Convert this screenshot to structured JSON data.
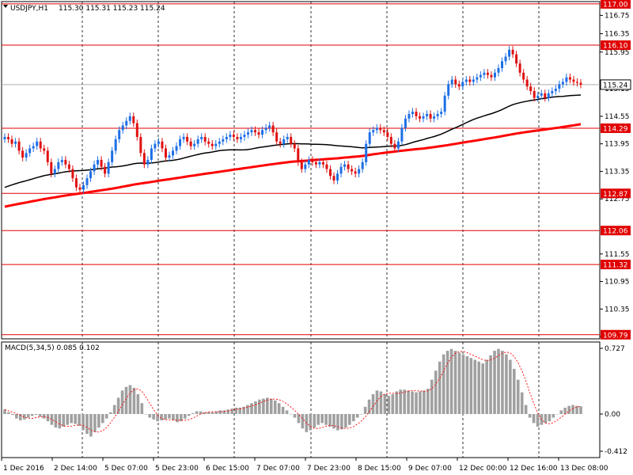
{
  "header": {
    "symbol": "USDJPY,H1",
    "ohlc": "115.30 115.31 115.23 115.24"
  },
  "chart_data": [
    {
      "type": "candlestick",
      "symbol": "USDJPY,H1",
      "ylim": [
        109.7,
        117.05
      ],
      "y_ticks": [
        116.75,
        116.35,
        115.95,
        115.15,
        114.55,
        113.95,
        113.35,
        112.75,
        111.55,
        110.95,
        110.35,
        109.75
      ],
      "horizontal_levels": [
        {
          "value": 117.0,
          "label": "117.00"
        },
        {
          "value": 116.1,
          "label": "116.10"
        },
        {
          "value": 114.29,
          "label": "114.29"
        },
        {
          "value": 112.87,
          "label": "112.87"
        },
        {
          "value": 112.06,
          "label": "112.06"
        },
        {
          "value": 111.32,
          "label": "111.32"
        },
        {
          "value": 109.79,
          "label": "109.79"
        }
      ],
      "current_price": {
        "value": 115.24,
        "label": "115.24"
      },
      "x_labels": [
        "1 Dec 2016",
        "2 Dec 14:00",
        "5 Dec 07:00",
        "5 Dec 23:00",
        "6 Dec 15:00",
        "7 Dec 07:00",
        "7 Dec 23:00",
        "8 Dec 15:00",
        "9 Dec 07:00",
        "12 Dec 00:00",
        "12 Dec 16:00",
        "13 Dec 08:00"
      ],
      "closes": [
        114.1,
        114.05,
        113.95,
        114.0,
        113.8,
        113.65,
        113.75,
        113.85,
        113.9,
        114.0,
        113.85,
        113.8,
        113.55,
        113.3,
        113.4,
        113.55,
        113.6,
        113.5,
        113.4,
        113.2,
        113.0,
        112.95,
        113.05,
        113.2,
        113.35,
        113.5,
        113.6,
        113.45,
        113.3,
        113.55,
        113.8,
        114.05,
        114.25,
        114.35,
        114.45,
        114.55,
        114.4,
        114.1,
        113.75,
        113.5,
        113.6,
        113.85,
        113.95,
        114.0,
        113.85,
        113.65,
        113.7,
        113.8,
        113.9,
        114.05,
        114.1,
        114.0,
        113.9,
        113.95,
        114.05,
        114.1,
        114.0,
        113.95,
        113.9,
        113.95,
        114.0,
        114.05,
        114.1,
        114.15,
        114.1,
        114.05,
        114.1,
        114.15,
        114.2,
        114.25,
        114.2,
        114.15,
        114.25,
        114.3,
        114.35,
        114.2,
        114.0,
        113.95,
        114.05,
        114.1,
        113.95,
        113.85,
        113.55,
        113.4,
        113.5,
        113.6,
        113.55,
        113.5,
        113.55,
        113.5,
        113.4,
        113.25,
        113.15,
        113.3,
        113.45,
        113.5,
        113.4,
        113.35,
        113.3,
        113.4,
        113.55,
        113.95,
        114.2,
        114.25,
        114.3,
        114.25,
        114.2,
        114.1,
        113.95,
        113.85,
        114.0,
        114.3,
        114.5,
        114.6,
        114.65,
        114.55,
        114.5,
        114.55,
        114.6,
        114.5,
        114.55,
        114.6,
        114.65,
        115.0,
        115.25,
        115.35,
        115.25,
        115.2,
        115.3,
        115.35,
        115.3,
        115.35,
        115.4,
        115.45,
        115.5,
        115.45,
        115.4,
        115.5,
        115.6,
        115.75,
        115.85,
        116.0,
        115.9,
        115.7,
        115.5,
        115.35,
        115.2,
        115.1,
        114.95,
        115.0,
        115.05,
        114.95,
        115.05,
        115.1,
        115.15,
        115.25,
        115.3,
        115.4,
        115.35,
        115.3,
        115.28,
        115.24
      ],
      "moving_averages": [
        {
          "color": "#000000",
          "start": 113.0,
          "end": 114.66
        },
        {
          "color": "#ff0000",
          "start": 112.58,
          "end": 114.28
        }
      ]
    },
    {
      "type": "histogram",
      "label": "MACD(5,34,5) 0.085 0.102",
      "ylim": [
        -0.412,
        0.727
      ],
      "y_ticks": [
        0.727,
        0.0,
        -0.412
      ],
      "y_tick_labels": [
        "0.727",
        "0.00",
        "-0.412"
      ],
      "values": [
        0.05,
        0.02,
        -0.01,
        -0.05,
        -0.07,
        -0.06,
        -0.04,
        -0.02,
        -0.01,
        -0.03,
        -0.05,
        -0.08,
        -0.12,
        -0.15,
        -0.16,
        -0.14,
        -0.12,
        -0.1,
        -0.11,
        -0.13,
        -0.18,
        -0.22,
        -0.25,
        -0.2,
        -0.15,
        -0.1,
        -0.05,
        0.02,
        0.1,
        0.18,
        0.26,
        0.3,
        0.32,
        0.29,
        0.22,
        0.12,
        0.0,
        -0.04,
        -0.06,
        -0.08,
        -0.07,
        -0.06,
        -0.05,
        -0.07,
        -0.09,
        -0.08,
        -0.05,
        -0.02,
        0.01,
        0.03,
        0.03,
        0.02,
        0.02,
        0.02,
        0.03,
        0.04,
        0.04,
        0.05,
        0.06,
        0.07,
        0.07,
        0.08,
        0.1,
        0.12,
        0.14,
        0.16,
        0.17,
        0.18,
        0.17,
        0.15,
        0.12,
        0.08,
        0.04,
        0.0,
        -0.04,
        -0.1,
        -0.16,
        -0.2,
        -0.18,
        -0.15,
        -0.12,
        -0.1,
        -0.12,
        -0.14,
        -0.16,
        -0.18,
        -0.17,
        -0.15,
        -0.12,
        -0.08,
        -0.04,
        0.0,
        0.08,
        0.16,
        0.22,
        0.26,
        0.25,
        0.22,
        0.2,
        0.22,
        0.25,
        0.27,
        0.27,
        0.26,
        0.25,
        0.24,
        0.25,
        0.26,
        0.28,
        0.38,
        0.48,
        0.58,
        0.66,
        0.7,
        0.72,
        0.7,
        0.68,
        0.66,
        0.64,
        0.62,
        0.6,
        0.58,
        0.56,
        0.6,
        0.65,
        0.7,
        0.72,
        0.7,
        0.66,
        0.6,
        0.5,
        0.38,
        0.24,
        0.1,
        -0.04,
        -0.1,
        -0.14,
        -0.12,
        -0.1,
        -0.08,
        -0.04,
        0.0,
        0.04,
        0.07,
        0.09,
        0.1,
        0.09,
        0.085
      ],
      "signal_line": {
        "color": "#ff0000"
      }
    }
  ],
  "colors": {
    "bull": "#1e6fe6",
    "bear": "#e01010",
    "level": "#e00000",
    "grid": "#000000",
    "text": "#000000"
  }
}
